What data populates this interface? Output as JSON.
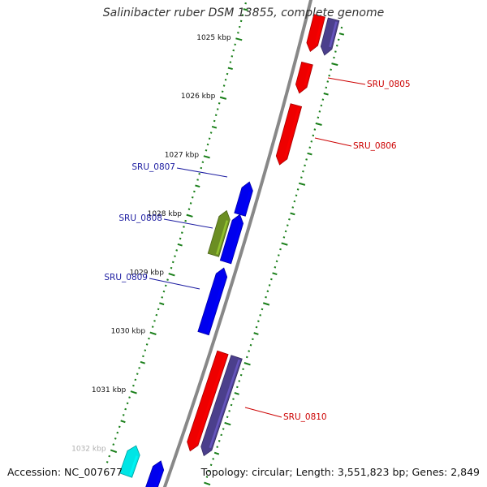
{
  "header": {
    "title": "Salinibacter ruber DSM 13855, complete genome"
  },
  "footer": {
    "accession": "Accession: NC_007677",
    "summary": "Topology: circular; Length: 3,551,823 bp; Genes: 2,849"
  },
  "colors": {
    "backbone": "#888888",
    "tick": "#1a7f1a",
    "forward_gene": "#0000ee",
    "reverse_gene": "#ee0000",
    "rna_gene": "#4b3f8c",
    "other_gene": "#6b8e23",
    "highlight_gene": "#00e5e5",
    "label_forward": "#1a1aa0",
    "label_reverse": "#cc0000"
  },
  "scale": {
    "unit": "kbp",
    "labels": [
      {
        "text": "1025 kbp",
        "kbp": 1025
      },
      {
        "text": "1026 kbp",
        "kbp": 1026
      },
      {
        "text": "1027 kbp",
        "kbp": 1027
      },
      {
        "text": "1028 kbp",
        "kbp": 1028
      },
      {
        "text": "1029 kbp",
        "kbp": 1029
      },
      {
        "text": "1030 kbp",
        "kbp": 1030
      },
      {
        "text": "1031 kbp",
        "kbp": 1031
      },
      {
        "text": "1032 kbp",
        "kbp": 1032
      }
    ]
  },
  "genes": [
    {
      "locus": "SRU_0805",
      "strand": "reverse",
      "start_kbp": 1025.1,
      "end_kbp": 1025.6,
      "labeled": true
    },
    {
      "locus": "SRU_0806",
      "strand": "reverse",
      "start_kbp": 1025.8,
      "end_kbp": 1026.8,
      "labeled": true
    },
    {
      "locus": "SRU_0807",
      "strand": "forward",
      "start_kbp": 1027.2,
      "end_kbp": 1027.75,
      "labeled": true
    },
    {
      "locus": "SRU_0808",
      "strand": "forward",
      "start_kbp": 1027.75,
      "end_kbp": 1028.55,
      "labeled": true
    },
    {
      "locus": "SRU_0808-gene",
      "strand": "other",
      "start_kbp": 1027.75,
      "end_kbp": 1028.5,
      "labeled": false
    },
    {
      "locus": "SRU_0809",
      "strand": "forward",
      "start_kbp": 1028.65,
      "end_kbp": 1029.75,
      "labeled": true
    },
    {
      "locus": "SRU_0810",
      "strand": "reverse",
      "start_kbp": 1029.95,
      "end_kbp": 1031.6,
      "labeled": true
    },
    {
      "locus": "SRU_0810-gene",
      "strand": "rna",
      "start_kbp": 1029.95,
      "end_kbp": 1031.6,
      "labeled": false
    },
    {
      "locus": "SRU_0804-gene",
      "strand": "rna",
      "start_kbp": 1024.3,
      "end_kbp": 1024.9,
      "labeled": false
    },
    {
      "locus": "SRU_0804",
      "strand": "reverse",
      "start_kbp": 1024.3,
      "end_kbp": 1024.9,
      "labeled": false
    },
    {
      "locus": "SRU_0811",
      "strand": "forward",
      "start_kbp": 1031.9,
      "end_kbp": 1032.4,
      "labeled": false
    },
    {
      "locus": "SRU_0811-tRNA",
      "strand": "highlight",
      "start_kbp": 1031.8,
      "end_kbp": 1032.3,
      "labeled": false
    }
  ]
}
